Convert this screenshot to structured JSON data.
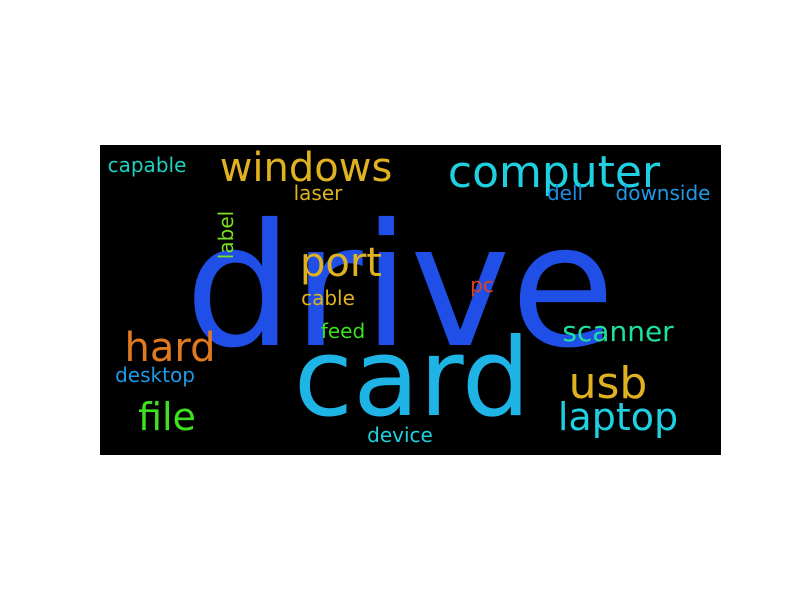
{
  "word_cloud": {
    "background": "#000000",
    "words": [
      {
        "key": "drive",
        "text": "drive",
        "color": "#1f4fe6"
      },
      {
        "key": "card",
        "text": "card",
        "color": "#1fb4e6"
      },
      {
        "key": "computer",
        "text": "computer",
        "color": "#1fd0e0"
      },
      {
        "key": "windows",
        "text": "windows",
        "color": "#e0b21f"
      },
      {
        "key": "port",
        "text": "port",
        "color": "#e0b21f"
      },
      {
        "key": "hard",
        "text": "hard",
        "color": "#e07a1f"
      },
      {
        "key": "usb",
        "text": "usb",
        "color": "#e0b21f"
      },
      {
        "key": "laptop",
        "text": "laptop",
        "color": "#1fd0e0"
      },
      {
        "key": "file",
        "text": "file",
        "color": "#3fe01f"
      },
      {
        "key": "scanner",
        "text": "scanner",
        "color": "#1fe09a"
      },
      {
        "key": "capable",
        "text": "capable",
        "color": "#1fd0c0"
      },
      {
        "key": "laser",
        "text": "laser",
        "color": "#e0b21f"
      },
      {
        "key": "label",
        "text": "label",
        "color": "#7ae01f"
      },
      {
        "key": "dell",
        "text": "dell",
        "color": "#1f8ae6"
      },
      {
        "key": "downside",
        "text": "downside",
        "color": "#1f9ae6"
      },
      {
        "key": "cable",
        "text": "cable",
        "color": "#e0b21f"
      },
      {
        "key": "pc",
        "text": "pc",
        "color": "#e0401f"
      },
      {
        "key": "feed",
        "text": "feed",
        "color": "#3fe01f"
      },
      {
        "key": "desktop",
        "text": "desktop",
        "color": "#1f9ae6"
      },
      {
        "key": "device",
        "text": "device",
        "color": "#1fd0e0"
      }
    ]
  }
}
